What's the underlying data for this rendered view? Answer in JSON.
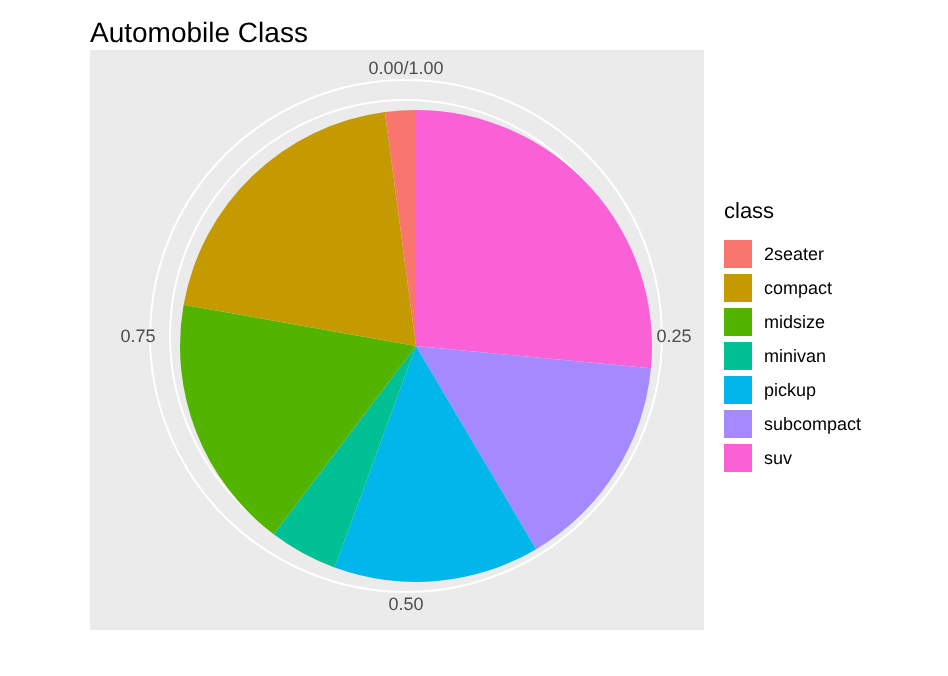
{
  "chart_data": {
    "type": "pie",
    "title": "Automobile Class",
    "legend_title": "class",
    "legend": "right",
    "categories": [
      "2seater",
      "compact",
      "midsize",
      "minivan",
      "pickup",
      "subcompact",
      "suv"
    ],
    "values": [
      2.1,
      20.1,
      17.5,
      4.7,
      14.1,
      15.0,
      26.5
    ],
    "colors": [
      "#f8766d",
      "#c49a00",
      "#53b400",
      "#00c094",
      "#00b6eb",
      "#a58aff",
      "#fb61d7"
    ],
    "annotations": [
      "0.00/1.00",
      "0.25",
      "0.50",
      "0.75"
    ]
  }
}
